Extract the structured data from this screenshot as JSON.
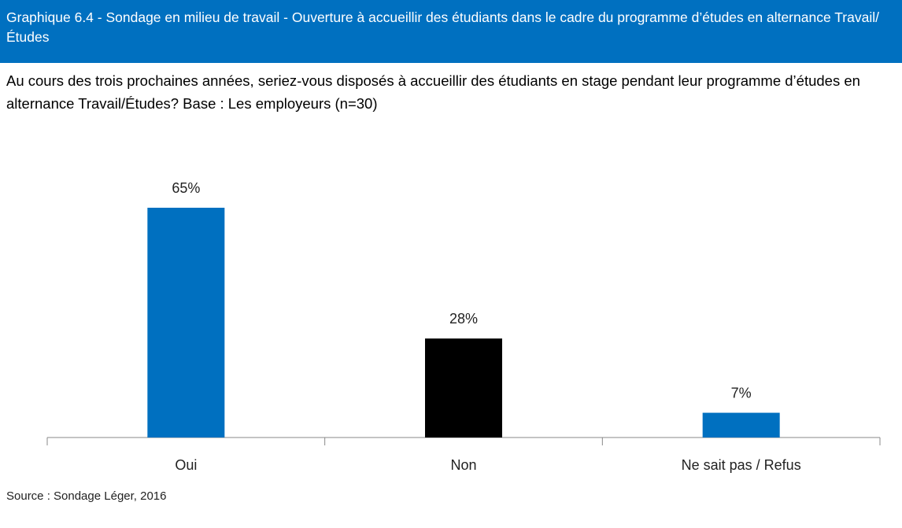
{
  "chart_data": {
    "type": "bar",
    "title": "Graphique 6.4 - Sondage en milieu de travail - Ouverture à accueillir des étudiants dans le cadre du programme d’études en alternance Travail/Études",
    "subtitle": "Au cours des trois prochaines années, seriez-vous disposés à accueillir des étudiants en stage pendant leur programme d’études en alternance Travail/Études? Base : Les employeurs (n=30)",
    "categories": [
      "Oui",
      "Non",
      "Ne sait pas / Refus"
    ],
    "values": [
      65,
      28,
      7
    ],
    "value_labels": [
      "65%",
      "28%",
      "7%"
    ],
    "colors": [
      "#0070c0",
      "#000000",
      "#0070c0"
    ],
    "source": "Source : Sondage Léger, 2016"
  }
}
